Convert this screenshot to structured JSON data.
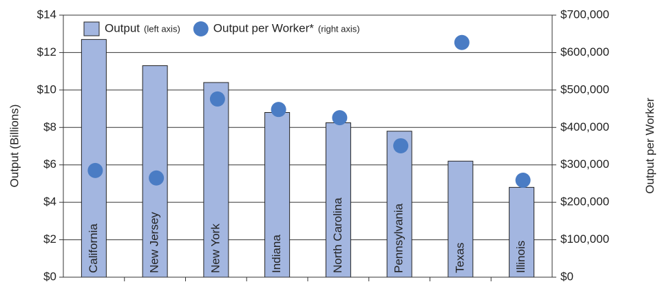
{
  "chart_data": {
    "type": "bar_dot",
    "categories": [
      "California",
      "New Jersey",
      "New York",
      "Indiana",
      "North Carolina",
      "Pennsylvania",
      "Texas",
      "Illinois"
    ],
    "series": [
      {
        "name": "Output",
        "color": "#a3b6e0",
        "values": [
          12.7,
          11.3,
          10.4,
          8.8,
          8.25,
          7.8,
          6.2,
          4.8
        ]
      },
      {
        "name": "Output per Worker*",
        "color": "#4a7cc4",
        "axis": "y2",
        "values": [
          285000,
          265000,
          476000,
          448000,
          426000,
          351000,
          627000,
          259000
        ]
      }
    ],
    "legend_notes": [
      "(left axis)",
      "(right axis)"
    ],
    "ylabel": "Output (Billions)",
    "y2label": "Output per Worker",
    "ylim": [
      0,
      14
    ],
    "yticks": [
      {
        "value": 0,
        "label": "$0"
      },
      {
        "value": 2,
        "label": "$2"
      },
      {
        "value": 4,
        "label": "$4"
      },
      {
        "value": 6,
        "label": "$6"
      },
      {
        "value": 8,
        "label": "$8"
      },
      {
        "value": 10,
        "label": "$10"
      },
      {
        "value": 12,
        "label": "$12"
      },
      {
        "value": 14,
        "label": "$14"
      }
    ],
    "y2lim": [
      0,
      700000
    ],
    "y2ticks": [
      {
        "value": 0,
        "label": "$0"
      },
      {
        "value": 100000,
        "label": "$100,000"
      },
      {
        "value": 200000,
        "label": "$200,000"
      },
      {
        "value": 300000,
        "label": "$300,000"
      },
      {
        "value": 400000,
        "label": "$400,000"
      },
      {
        "value": 500000,
        "label": "$500,000"
      },
      {
        "value": 600000,
        "label": "$600,000"
      },
      {
        "value": 700000,
        "label": "$700,000"
      }
    ],
    "grid": true
  }
}
